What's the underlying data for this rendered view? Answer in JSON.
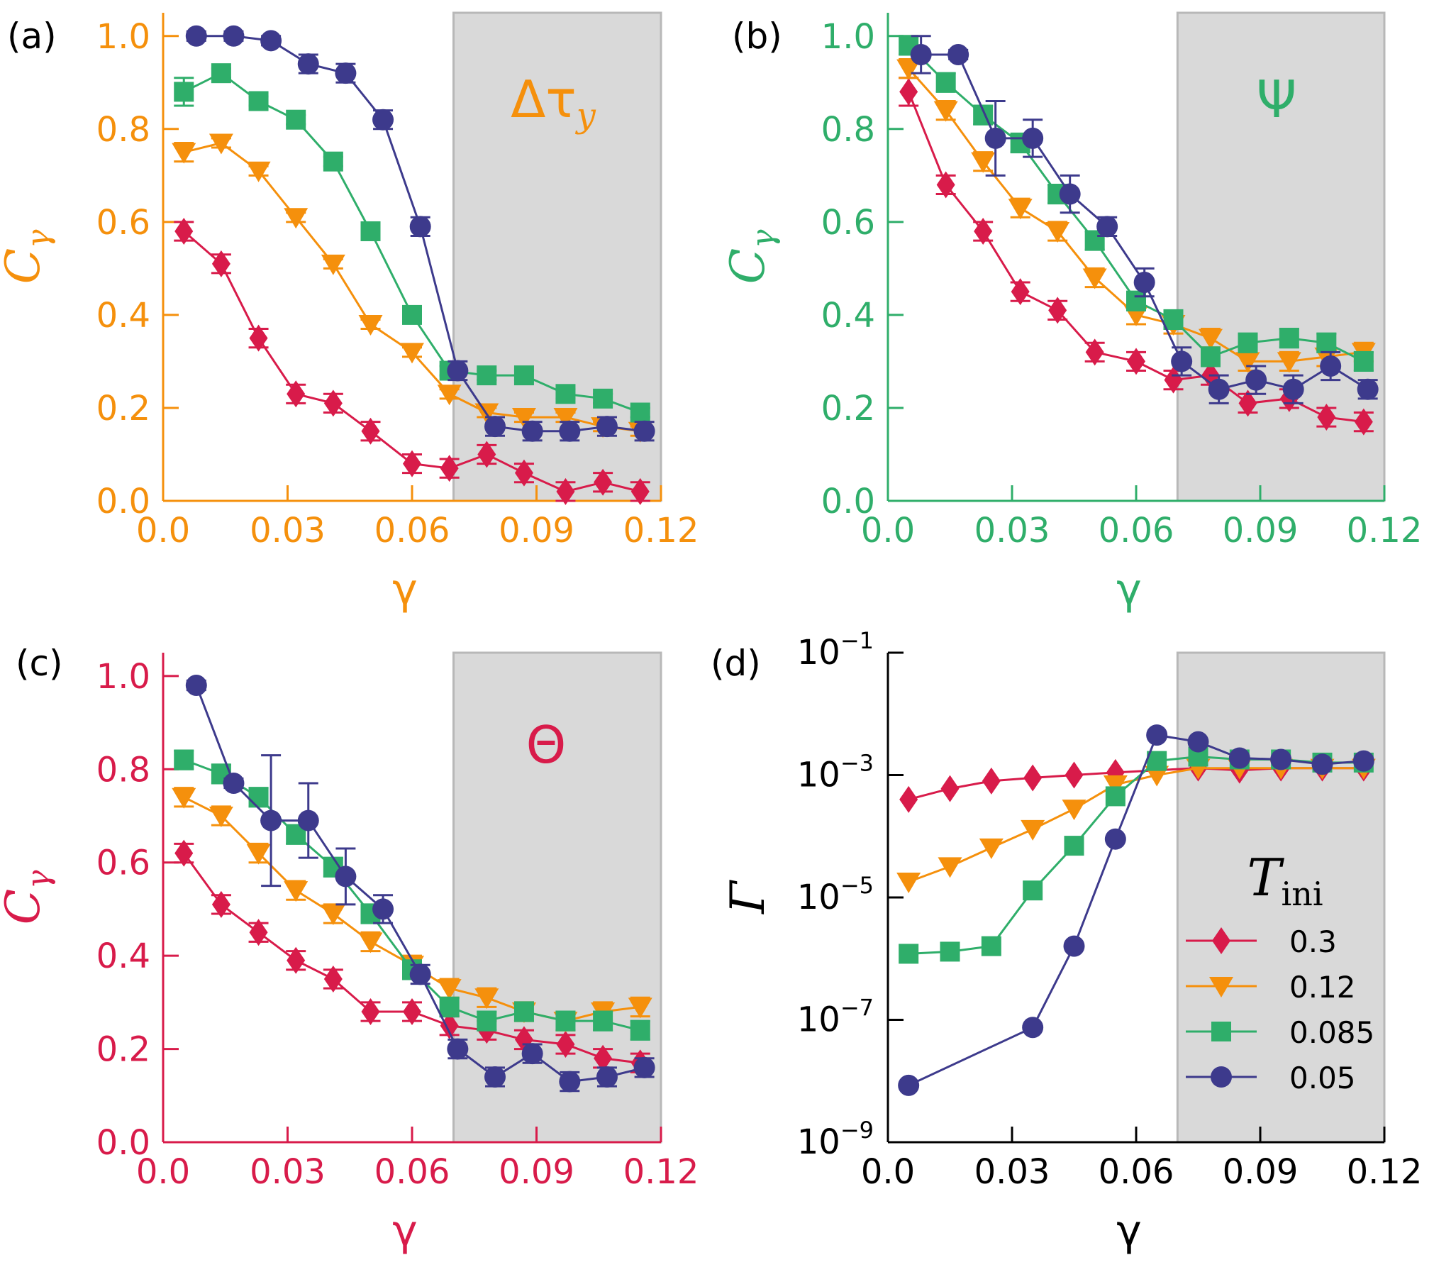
{
  "colors": {
    "orange": "#f5900c",
    "green": "#2fae6a",
    "red": "#d81b4a",
    "navy": "#3d3a8c",
    "black": "#000000",
    "shade": "#d9d9d9",
    "shade_edge": "#b8b8b8"
  },
  "legend": {
    "title_symbol": "T",
    "title_sub": "ini",
    "entries": [
      {
        "label": "0.3",
        "marker": "diamond",
        "color": "#d81b4a"
      },
      {
        "label": "0.12",
        "marker": "triangle-down",
        "color": "#f5900c"
      },
      {
        "label": "0.085",
        "marker": "square",
        "color": "#2fae6a"
      },
      {
        "label": "0.05",
        "marker": "circle",
        "color": "#3d3a8c"
      }
    ]
  },
  "chart_data": [
    {
      "panel": "(a)",
      "type": "line",
      "axis_color": "#f5900c",
      "annotation": "Δτ",
      "annotation_sub": "y",
      "xlabel": "γ",
      "ylabel": "C",
      "ylabel_sub": "γ",
      "xlim": [
        0,
        0.12
      ],
      "ylim": [
        0,
        1.05
      ],
      "xticks": [
        "0.0",
        "0.03",
        "0.06",
        "0.09",
        "0.12"
      ],
      "yticks": [
        "0.0",
        "0.2",
        "0.4",
        "0.6",
        "0.8",
        "1.0"
      ],
      "yscale": "linear",
      "shaded_x": [
        0.07,
        0.12
      ],
      "series": [
        {
          "name": "0.3",
          "x": [
            0.005,
            0.014,
            0.023,
            0.032,
            0.041,
            0.05,
            0.06,
            0.069,
            0.078,
            0.087,
            0.097,
            0.106,
            0.115
          ],
          "y": [
            0.58,
            0.51,
            0.35,
            0.23,
            0.21,
            0.15,
            0.08,
            0.07,
            0.1,
            0.06,
            0.02,
            0.04,
            0.02
          ],
          "err": [
            0.02,
            0.02,
            0.02,
            0.02,
            0.02,
            0.02,
            0.02,
            0.02,
            0.02,
            0.02,
            0.02,
            0.02,
            0.02
          ]
        },
        {
          "name": "0.12",
          "x": [
            0.005,
            0.014,
            0.023,
            0.032,
            0.041,
            0.05,
            0.06,
            0.069,
            0.078,
            0.087,
            0.097,
            0.106,
            0.115
          ],
          "y": [
            0.75,
            0.77,
            0.71,
            0.61,
            0.51,
            0.38,
            0.32,
            0.23,
            0.19,
            0.18,
            0.18,
            0.16,
            0.15
          ],
          "err": [
            0.02,
            0.01,
            0.01,
            0.01,
            0.01,
            0.01,
            0.01,
            0.01,
            0.01,
            0.01,
            0.01,
            0.01,
            0.01
          ]
        },
        {
          "name": "0.085",
          "x": [
            0.005,
            0.014,
            0.023,
            0.032,
            0.041,
            0.05,
            0.06,
            0.069,
            0.078,
            0.087,
            0.097,
            0.106,
            0.115
          ],
          "y": [
            0.88,
            0.92,
            0.86,
            0.82,
            0.73,
            0.58,
            0.4,
            0.28,
            0.27,
            0.27,
            0.23,
            0.22,
            0.19
          ],
          "err": [
            0.03,
            0.01,
            0.01,
            0.01,
            0.01,
            0.01,
            0.01,
            0.01,
            0.01,
            0.01,
            0.01,
            0.01,
            0.01
          ]
        },
        {
          "name": "0.05",
          "x": [
            0.008,
            0.017,
            0.026,
            0.035,
            0.044,
            0.053,
            0.062,
            0.071,
            0.08,
            0.089,
            0.098,
            0.107,
            0.116
          ],
          "y": [
            1.0,
            1.0,
            0.99,
            0.94,
            0.92,
            0.82,
            0.59,
            0.28,
            0.16,
            0.15,
            0.15,
            0.16,
            0.15
          ],
          "err": [
            0.01,
            0.01,
            0.01,
            0.02,
            0.02,
            0.02,
            0.02,
            0.02,
            0.02,
            0.02,
            0.02,
            0.02,
            0.02
          ]
        }
      ]
    },
    {
      "panel": "(b)",
      "type": "line",
      "axis_color": "#2fae6a",
      "annotation": "Ψ",
      "annotation_sub": "",
      "xlabel": "γ",
      "ylabel": "C",
      "ylabel_sub": "γ",
      "xlim": [
        0,
        0.12
      ],
      "ylim": [
        0,
        1.05
      ],
      "xticks": [
        "0.0",
        "0.03",
        "0.06",
        "0.09",
        "0.12"
      ],
      "yticks": [
        "0.0",
        "0.2",
        "0.4",
        "0.6",
        "0.8",
        "1.0"
      ],
      "yscale": "linear",
      "shaded_x": [
        0.07,
        0.12
      ],
      "series": [
        {
          "name": "0.3",
          "x": [
            0.005,
            0.014,
            0.023,
            0.032,
            0.041,
            0.05,
            0.06,
            0.069,
            0.078,
            0.087,
            0.097,
            0.106,
            0.115
          ],
          "y": [
            0.88,
            0.68,
            0.58,
            0.45,
            0.41,
            0.32,
            0.3,
            0.26,
            0.27,
            0.21,
            0.22,
            0.18,
            0.17
          ],
          "err": [
            0.03,
            0.02,
            0.02,
            0.02,
            0.02,
            0.02,
            0.02,
            0.02,
            0.02,
            0.02,
            0.02,
            0.02,
            0.02
          ]
        },
        {
          "name": "0.12",
          "x": [
            0.005,
            0.014,
            0.023,
            0.032,
            0.041,
            0.05,
            0.06,
            0.069,
            0.078,
            0.087,
            0.097,
            0.106,
            0.115
          ],
          "y": [
            0.93,
            0.84,
            0.73,
            0.63,
            0.58,
            0.48,
            0.4,
            0.38,
            0.35,
            0.3,
            0.3,
            0.31,
            0.32
          ],
          "err": [
            0.02,
            0.02,
            0.02,
            0.02,
            0.02,
            0.02,
            0.02,
            0.02,
            0.02,
            0.02,
            0.02,
            0.02,
            0.02
          ]
        },
        {
          "name": "0.085",
          "x": [
            0.005,
            0.014,
            0.023,
            0.032,
            0.041,
            0.05,
            0.06,
            0.069,
            0.078,
            0.087,
            0.097,
            0.106,
            0.115
          ],
          "y": [
            0.98,
            0.9,
            0.83,
            0.77,
            0.66,
            0.56,
            0.43,
            0.39,
            0.31,
            0.34,
            0.35,
            0.34,
            0.3
          ],
          "err": [
            0.02,
            0.02,
            0.02,
            0.02,
            0.02,
            0.02,
            0.02,
            0.02,
            0.02,
            0.02,
            0.02,
            0.02,
            0.02
          ]
        },
        {
          "name": "0.05",
          "x": [
            0.008,
            0.017,
            0.026,
            0.035,
            0.044,
            0.053,
            0.062,
            0.071,
            0.08,
            0.089,
            0.098,
            0.107,
            0.116
          ],
          "y": [
            0.96,
            0.96,
            0.78,
            0.78,
            0.66,
            0.59,
            0.47,
            0.3,
            0.24,
            0.26,
            0.24,
            0.29,
            0.24
          ],
          "err": [
            0.04,
            0.01,
            0.08,
            0.04,
            0.04,
            0.02,
            0.03,
            0.03,
            0.03,
            0.03,
            0.03,
            0.03,
            0.02
          ]
        }
      ]
    },
    {
      "panel": "(c)",
      "type": "line",
      "axis_color": "#d81b4a",
      "annotation": "Θ",
      "annotation_sub": "",
      "xlabel": "γ",
      "ylabel": "C",
      "ylabel_sub": "γ",
      "xlim": [
        0,
        0.12
      ],
      "ylim": [
        0,
        1.05
      ],
      "xticks": [
        "0.0",
        "0.03",
        "0.06",
        "0.09",
        "0.12"
      ],
      "yticks": [
        "0.0",
        "0.2",
        "0.4",
        "0.6",
        "0.8",
        "1.0"
      ],
      "yscale": "linear",
      "shaded_x": [
        0.07,
        0.12
      ],
      "series": [
        {
          "name": "0.3",
          "x": [
            0.005,
            0.014,
            0.023,
            0.032,
            0.041,
            0.05,
            0.06,
            0.069,
            0.078,
            0.087,
            0.097,
            0.106,
            0.115
          ],
          "y": [
            0.62,
            0.51,
            0.45,
            0.39,
            0.35,
            0.28,
            0.28,
            0.25,
            0.24,
            0.22,
            0.21,
            0.18,
            0.17
          ],
          "err": [
            0.02,
            0.02,
            0.02,
            0.02,
            0.02,
            0.02,
            0.02,
            0.02,
            0.02,
            0.02,
            0.02,
            0.02,
            0.02
          ]
        },
        {
          "name": "0.12",
          "x": [
            0.005,
            0.014,
            0.023,
            0.032,
            0.041,
            0.05,
            0.06,
            0.069,
            0.078,
            0.087,
            0.097,
            0.106,
            0.115
          ],
          "y": [
            0.74,
            0.7,
            0.62,
            0.54,
            0.49,
            0.43,
            0.38,
            0.33,
            0.31,
            0.28,
            0.26,
            0.28,
            0.29
          ],
          "err": [
            0.02,
            0.02,
            0.02,
            0.02,
            0.02,
            0.02,
            0.02,
            0.02,
            0.02,
            0.02,
            0.02,
            0.02,
            0.02
          ]
        },
        {
          "name": "0.085",
          "x": [
            0.005,
            0.014,
            0.023,
            0.032,
            0.041,
            0.05,
            0.06,
            0.069,
            0.078,
            0.087,
            0.097,
            0.106,
            0.115
          ],
          "y": [
            0.82,
            0.79,
            0.74,
            0.66,
            0.59,
            0.49,
            0.37,
            0.29,
            0.26,
            0.28,
            0.26,
            0.26,
            0.24
          ],
          "err": [
            0.02,
            0.02,
            0.02,
            0.02,
            0.02,
            0.02,
            0.02,
            0.02,
            0.02,
            0.02,
            0.02,
            0.02,
            0.02
          ]
        },
        {
          "name": "0.05",
          "x": [
            0.008,
            0.017,
            0.026,
            0.035,
            0.044,
            0.053,
            0.062,
            0.071,
            0.08,
            0.089,
            0.098,
            0.107,
            0.116
          ],
          "y": [
            0.98,
            0.77,
            0.69,
            0.69,
            0.57,
            0.5,
            0.36,
            0.2,
            0.14,
            0.19,
            0.13,
            0.14,
            0.16
          ],
          "err": [
            0.01,
            0.01,
            0.14,
            0.08,
            0.06,
            0.03,
            0.02,
            0.02,
            0.02,
            0.02,
            0.02,
            0.02,
            0.02
          ]
        }
      ]
    },
    {
      "panel": "(d)",
      "type": "line",
      "axis_color": "#000000",
      "annotation": "",
      "annotation_sub": "",
      "xlabel": "γ",
      "ylabel": "Γ",
      "ylabel_sub": "",
      "xlim": [
        0,
        0.12
      ],
      "ylim": [
        1e-09,
        0.1
      ],
      "xticks": [
        "0.0",
        "0.03",
        "0.06",
        "0.09",
        "0.12"
      ],
      "yticks": [
        "10",
        "10",
        "10",
        "10",
        "10"
      ],
      "yticks_exp": [
        "−9",
        "−7",
        "−5",
        "−3",
        "−1"
      ],
      "yscale": "log",
      "shaded_x": [
        0.07,
        0.12
      ],
      "legend_title": "T_ini",
      "legend_position": "center-right",
      "series": [
        {
          "name": "0.3",
          "x": [
            0.005,
            0.015,
            0.025,
            0.035,
            0.045,
            0.055,
            0.065,
            0.075,
            0.085,
            0.095,
            0.105,
            0.115
          ],
          "y": [
            0.0004,
            0.0006,
            0.0008,
            0.0009,
            0.001,
            0.0011,
            0.0012,
            0.0013,
            0.0012,
            0.0013,
            0.0013,
            0.0013
          ]
        },
        {
          "name": "0.12",
          "x": [
            0.005,
            0.015,
            0.025,
            0.035,
            0.045,
            0.055,
            0.065,
            0.075,
            0.085,
            0.095,
            0.105,
            0.115
          ],
          "y": [
            1.8e-05,
            3.2e-05,
            6.5e-05,
            0.00013,
            0.00028,
            0.0007,
            0.001,
            0.0013,
            0.0013,
            0.0013,
            0.0013,
            0.0013
          ]
        },
        {
          "name": "0.085",
          "x": [
            0.005,
            0.015,
            0.025,
            0.035,
            0.045,
            0.055,
            0.065,
            0.075,
            0.085,
            0.095,
            0.105,
            0.115
          ],
          "y": [
            1.2e-06,
            1.3e-06,
            1.6e-06,
            1.3e-05,
            7e-05,
            0.00045,
            0.0017,
            0.002,
            0.0018,
            0.0018,
            0.0016,
            0.0016
          ]
        },
        {
          "name": "0.05",
          "x": [
            0.005,
            0.035,
            0.045,
            0.055,
            0.065,
            0.075,
            0.085,
            0.095,
            0.105,
            0.115
          ],
          "y": [
            8.5e-09,
            7.5e-08,
            1.6e-06,
            9e-05,
            0.0045,
            0.0035,
            0.0019,
            0.0018,
            0.0015,
            0.0017
          ]
        }
      ]
    }
  ]
}
